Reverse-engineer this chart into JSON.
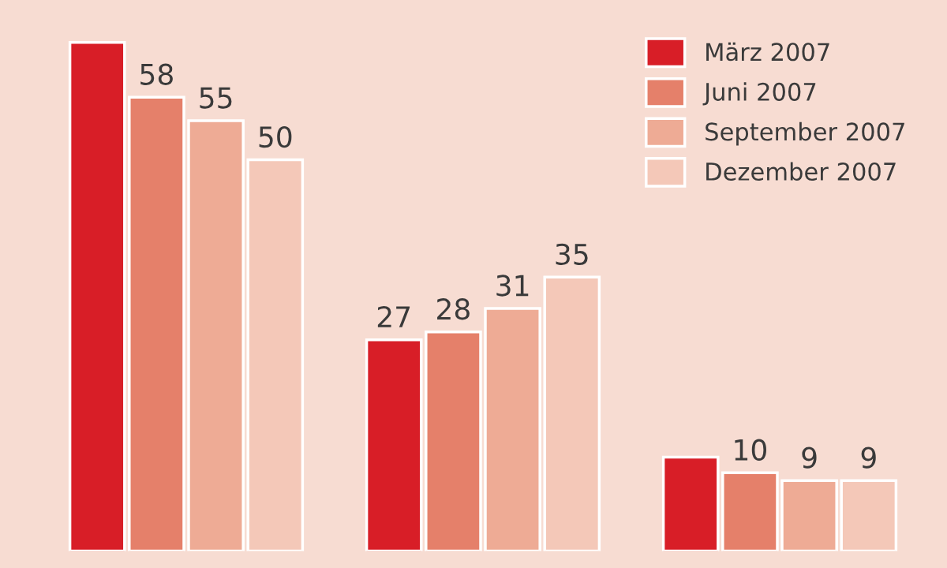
{
  "chart_data": {
    "type": "bar",
    "categories": [
      null,
      null,
      null
    ],
    "series": [
      {
        "name": "März 2007",
        "color": "#d81e27",
        "values": [
          65,
          27,
          12
        ],
        "value_labels": [
          null,
          "27",
          null
        ]
      },
      {
        "name": "Juni 2007",
        "color": "#e5806a",
        "values": [
          58,
          28,
          10
        ],
        "value_labels": [
          "58",
          "28",
          "10"
        ]
      },
      {
        "name": "September 2007",
        "color": "#eeab95",
        "values": [
          55,
          31,
          9
        ],
        "value_labels": [
          "55",
          "31",
          "9"
        ]
      },
      {
        "name": "Dezember 2007",
        "color": "#f4c8b8",
        "values": [
          50,
          35,
          9
        ],
        "value_labels": [
          "50",
          "35",
          "9"
        ]
      }
    ],
    "tick_labels": false,
    "grid": false,
    "legend": "top right"
  }
}
